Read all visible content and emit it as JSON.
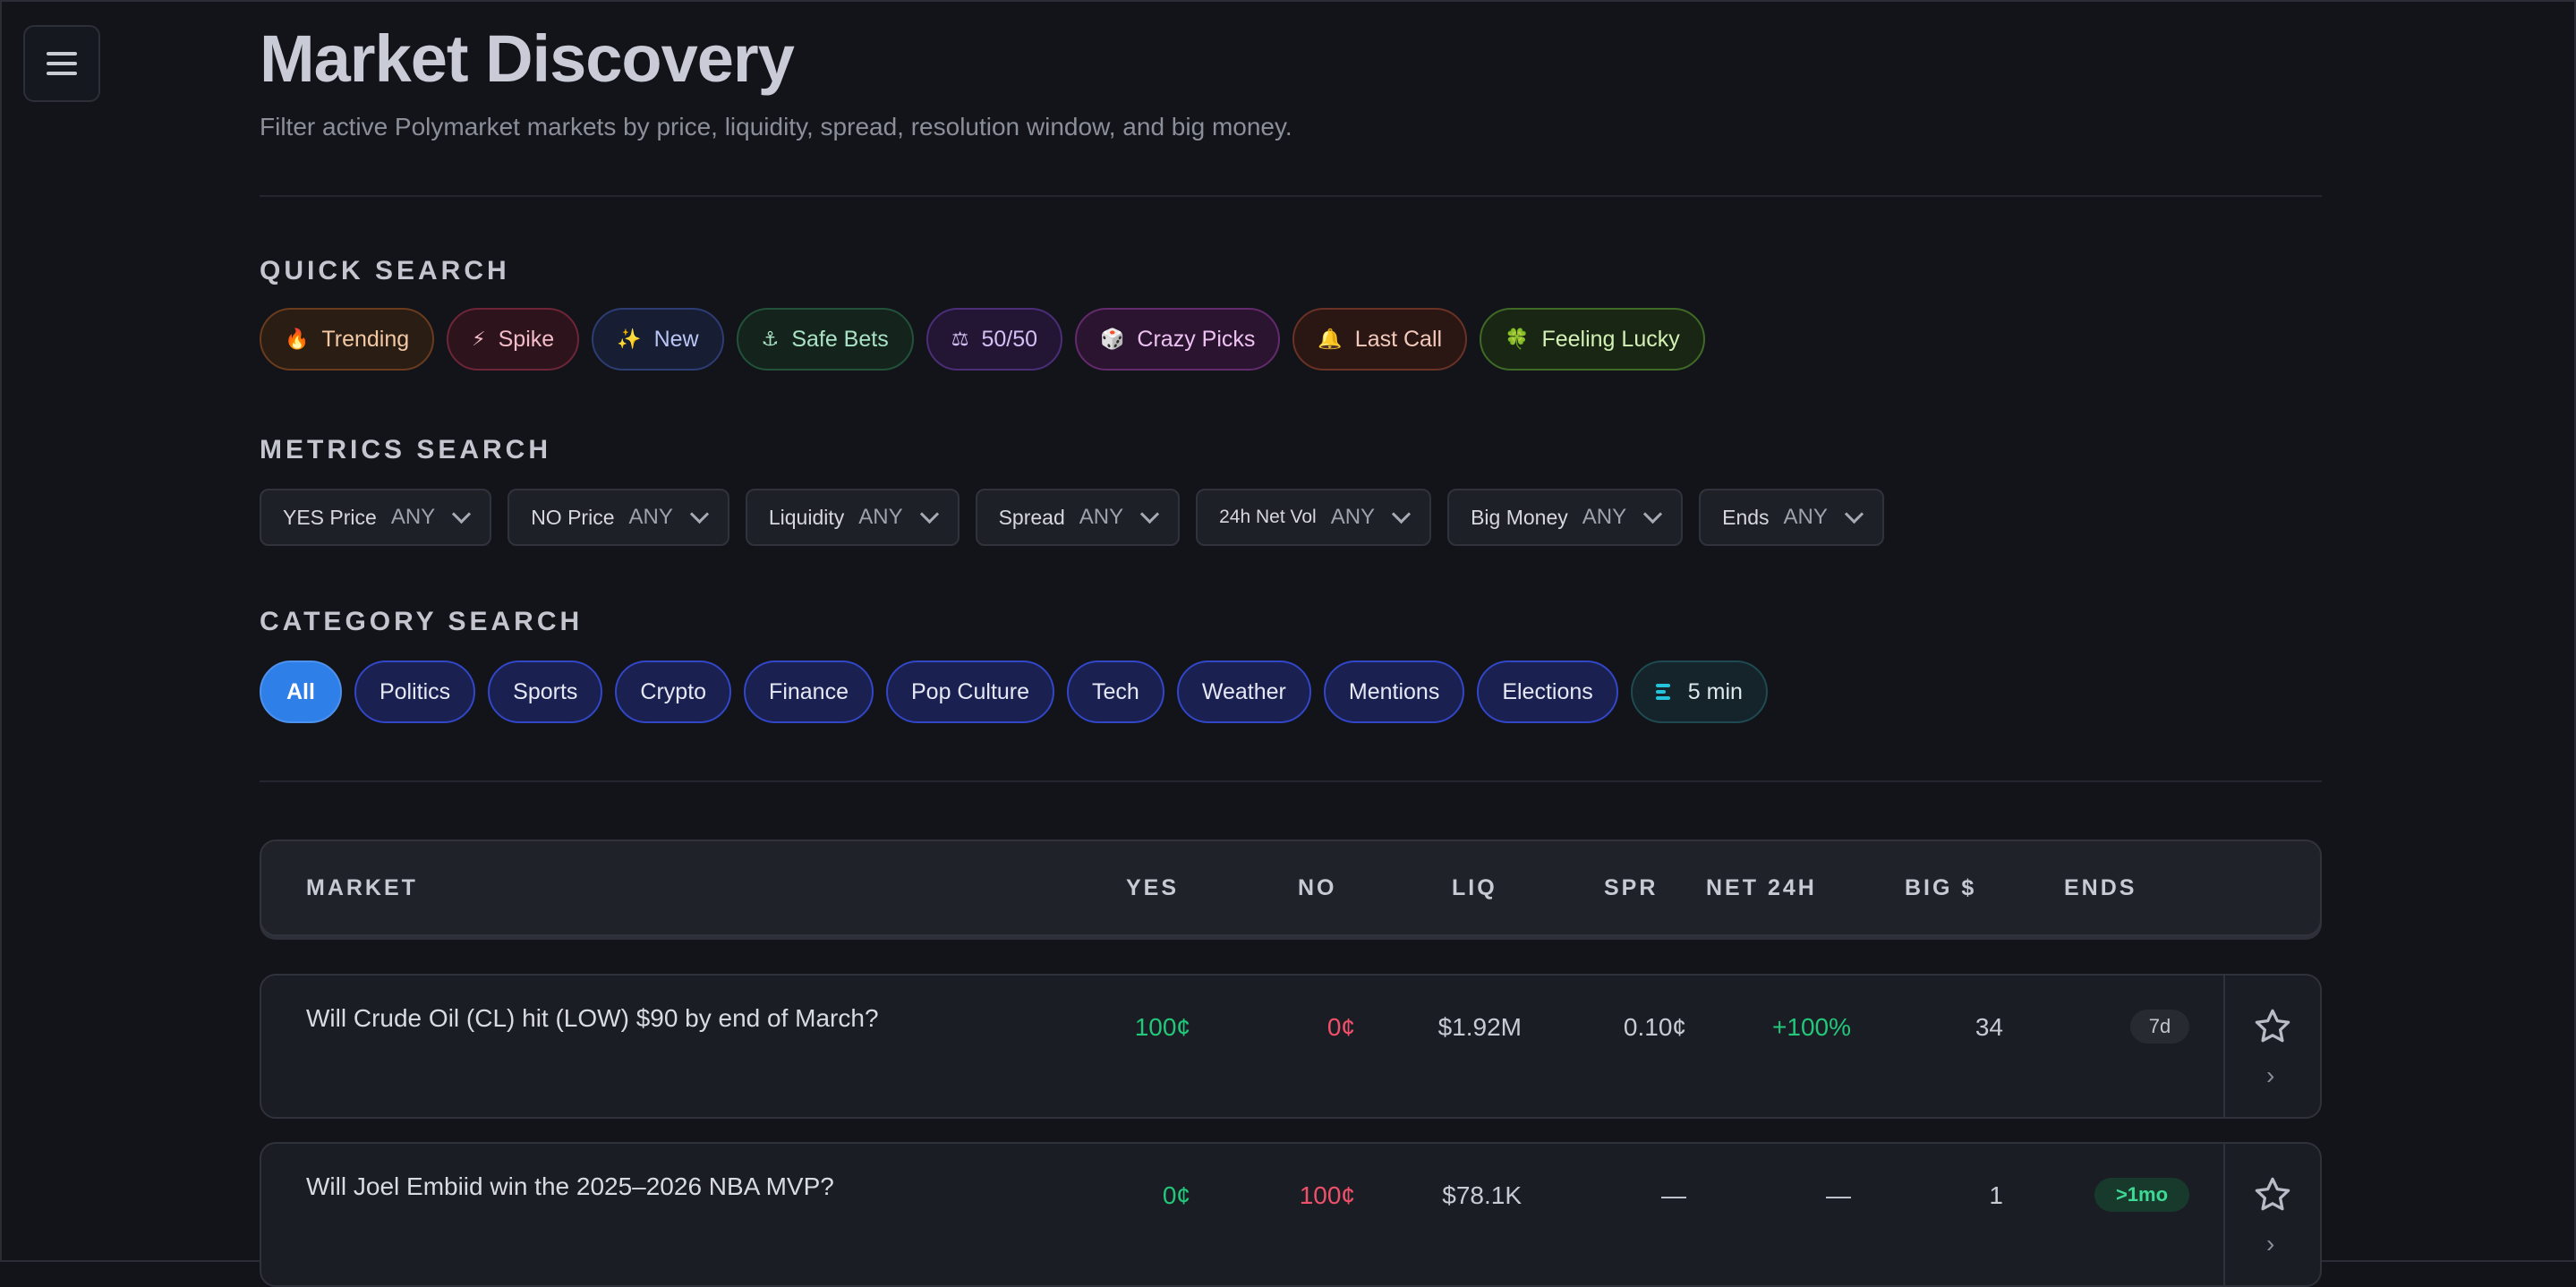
{
  "header": {
    "title": "Market Discovery",
    "subtitle": "Filter active Polymarket markets by price, liquidity, spread, resolution window, and big money."
  },
  "quick_search": {
    "title": "QUICK SEARCH",
    "chips": [
      {
        "icon": "fire-icon",
        "glyph": "🔥",
        "label": "Trending"
      },
      {
        "icon": "lightning-icon",
        "glyph": "⚡",
        "label": "Spike"
      },
      {
        "icon": "sparkles-icon",
        "glyph": "✨",
        "label": "New"
      },
      {
        "icon": "anchor-icon",
        "glyph": "⚓",
        "label": "Safe Bets"
      },
      {
        "icon": "scales-icon",
        "glyph": "⚖",
        "label": "50/50"
      },
      {
        "icon": "dice-icon",
        "glyph": "🎲",
        "label": "Crazy Picks"
      },
      {
        "icon": "bell-icon",
        "glyph": "🔔",
        "label": "Last Call"
      },
      {
        "icon": "clover-icon",
        "glyph": "🍀",
        "label": "Feeling Lucky"
      }
    ]
  },
  "metrics_search": {
    "title": "METRICS SEARCH",
    "filters": [
      {
        "label": "YES Price",
        "value": "ANY"
      },
      {
        "label": "NO Price",
        "value": "ANY"
      },
      {
        "label": "Liquidity",
        "value": "ANY"
      },
      {
        "label": "Spread",
        "value": "ANY"
      },
      {
        "label": "24h Net Vol",
        "value": "ANY"
      },
      {
        "label": "Big Money",
        "value": "ANY"
      },
      {
        "label": "Ends",
        "value": "ANY"
      }
    ]
  },
  "category_search": {
    "title": "CATEGORY SEARCH",
    "categories": [
      "All",
      "Politics",
      "Sports",
      "Crypto",
      "Finance",
      "Pop Culture",
      "Tech",
      "Weather",
      "Mentions",
      "Elections",
      "5 min"
    ],
    "selected": "All"
  },
  "table": {
    "columns": {
      "market": "MARKET",
      "yes": "YES",
      "no": "NO",
      "liq": "LIQ",
      "spr": "SPR",
      "net": "NET 24H",
      "big": "BIG $",
      "ends": "ENDS"
    },
    "rows": [
      {
        "market": "Will Crude Oil (CL) hit (LOW) $90 by end of March?",
        "yes": "100¢",
        "no": "0¢",
        "liq": "$1.92M",
        "spr": "0.10¢",
        "net": "+100%",
        "big": "34",
        "ends": "7d"
      },
      {
        "market": "Will Joel Embiid win the 2025–2026 NBA MVP?",
        "yes": "0¢",
        "no": "100¢",
        "liq": "$78.1K",
        "spr": "—",
        "net": "—",
        "big": "1",
        "ends": ">1mo"
      }
    ]
  },
  "colors": {
    "background": "#12141a",
    "yes": "#22c77a",
    "no": "#f0506a",
    "accent": "#2f7fe8"
  }
}
